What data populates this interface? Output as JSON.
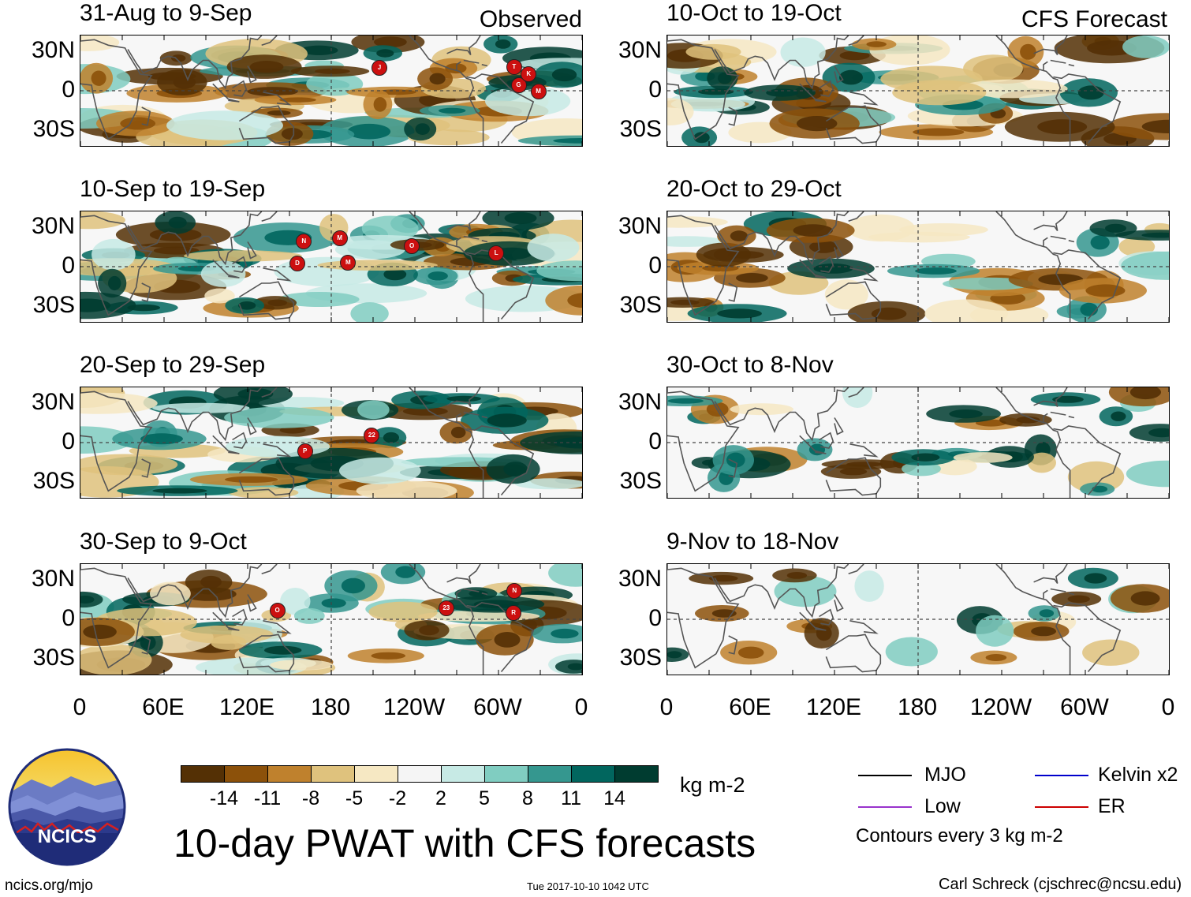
{
  "columns": {
    "observed_label": "Observed",
    "forecast_label": "CFS Forecast"
  },
  "panels_left": [
    {
      "title": "31-Aug to 9-Sep",
      "storms": [
        "M",
        "G",
        "T",
        "K",
        "J"
      ]
    },
    {
      "title": "10-Sep to 19-Sep",
      "storms": [
        "D",
        "O",
        "N",
        "M",
        "M",
        "L"
      ]
    },
    {
      "title": "20-Sep to 29-Sep",
      "storms": [
        "22",
        "P"
      ]
    },
    {
      "title": "30-Sep to 9-Oct",
      "storms": [
        "23",
        "R",
        "N",
        "O"
      ]
    }
  ],
  "panels_right": [
    {
      "title": "10-Oct to 19-Oct"
    },
    {
      "title": "20-Oct to 29-Oct"
    },
    {
      "title": "30-Oct to 8-Nov"
    },
    {
      "title": "9-Nov to 18-Nov"
    }
  ],
  "lat_labels": [
    "30N",
    "0",
    "30S"
  ],
  "lon_labels": [
    "0",
    "60E",
    "120E",
    "180",
    "120W",
    "60W",
    "0"
  ],
  "colorbar": {
    "colors": [
      "#543005",
      "#8c510a",
      "#bf812d",
      "#dfc27d",
      "#f6e8c3",
      "#f5f5f5",
      "#c7eae5",
      "#80cdc1",
      "#35978f",
      "#01665e",
      "#003c30"
    ],
    "labels": [
      "-14",
      "-11",
      "-8",
      "-5",
      "-2",
      "2",
      "5",
      "8",
      "11",
      "14"
    ],
    "units": "kg m-2"
  },
  "legend": {
    "mjo": "MJO",
    "kelvin": "Kelvin x2",
    "low": "Low",
    "er": "ER",
    "contours": "Contours every 3 kg m-2",
    "colors": {
      "mjo": "#000000",
      "kelvin": "#0000cc",
      "low": "#9933cc",
      "er": "#cc0000"
    }
  },
  "footer": {
    "title": "10-day PWAT with CFS forecasts",
    "logo_text": "NCICS",
    "url": "ncics.org/mjo",
    "timestamp": "Tue 2017-10-10 1042 UTC",
    "author": "Carl Schreck (cjschrec@ncsu.edu)"
  }
}
